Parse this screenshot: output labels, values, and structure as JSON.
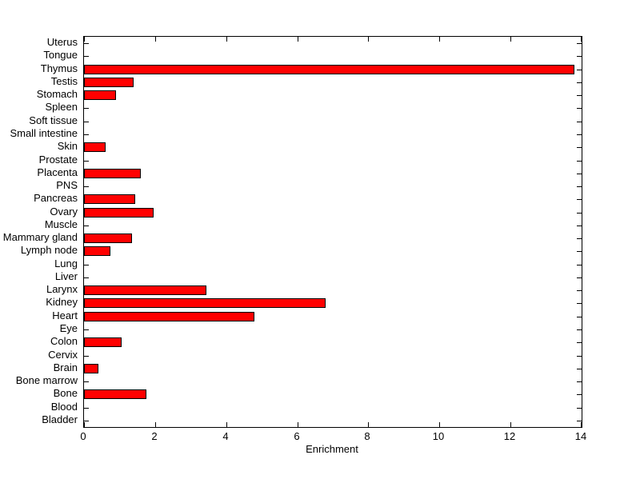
{
  "chart_data": {
    "type": "bar",
    "orientation": "horizontal",
    "title": "",
    "xlabel": "Enrichment",
    "ylabel": "",
    "xlim": [
      0,
      14
    ],
    "xticks": [
      0,
      2,
      4,
      6,
      8,
      10,
      12,
      14
    ],
    "grid": false,
    "legend": null,
    "bar_color": "#FF0000",
    "bar_edge_color": "#000000",
    "axis_color": "#000000",
    "background_color": "#FFFFFF",
    "categories": [
      "Uterus",
      "Tongue",
      "Thymus",
      "Testis",
      "Stomach",
      "Spleen",
      "Soft tissue",
      "Small intestine",
      "Skin",
      "Prostate",
      "Placenta",
      "PNS",
      "Pancreas",
      "Ovary",
      "Muscle",
      "Mammary gland",
      "Lymph node",
      "Lung",
      "Liver",
      "Larynx",
      "Kidney",
      "Heart",
      "Eye",
      "Colon",
      "Cervix",
      "Brain",
      "Bone marrow",
      "Bone",
      "Blood",
      "Bladder"
    ],
    "categories_order": "top_to_bottom",
    "values": [
      0,
      0,
      13.8,
      1.4,
      0.9,
      0,
      0,
      0,
      0.6,
      0,
      1.6,
      0,
      1.45,
      1.95,
      0,
      1.35,
      0.75,
      0,
      0,
      3.45,
      6.8,
      4.8,
      0,
      1.05,
      0,
      0.4,
      0,
      1.75,
      0,
      0
    ]
  }
}
